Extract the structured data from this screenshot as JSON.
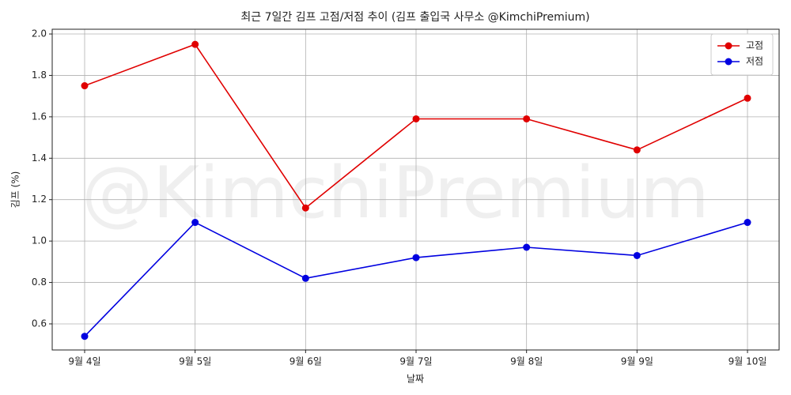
{
  "chart_data": {
    "type": "line",
    "title": "최근 7일간 김프 고점/저점 추이 (김프 출입국 사무소 @KimchiPremium)",
    "watermark": "@KimchiPremium",
    "x_label": "날짜",
    "y_label": "김프 (%)",
    "categories": [
      "9월 4일",
      "9월 5일",
      "9월 6일",
      "9월 7일",
      "9월 8일",
      "9월 9일",
      "9월 10일"
    ],
    "series": [
      {
        "name": "고점",
        "color": "#e00000",
        "values": [
          1.75,
          1.95,
          1.16,
          1.59,
          1.59,
          1.44,
          1.69
        ]
      },
      {
        "name": "저점",
        "color": "#0000e0",
        "values": [
          0.54,
          1.09,
          0.82,
          0.92,
          0.97,
          0.93,
          1.09
        ]
      }
    ],
    "ylim": [
      0.474,
      2.023
    ],
    "yticks": [
      0.6,
      0.8,
      {
        "value": 1.0,
        "label": "1.0"
      },
      1.2,
      1.4,
      1.6,
      1.8,
      {
        "value": 2.0,
        "label": "2.0"
      }
    ],
    "grid": true,
    "legend": "upper right"
  }
}
